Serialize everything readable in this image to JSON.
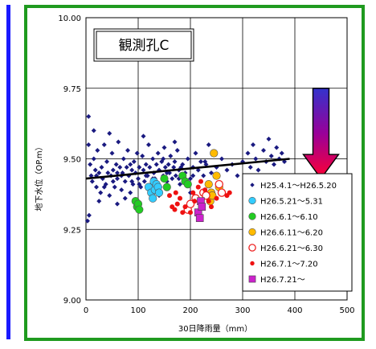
{
  "colors": {
    "frame": "#1f9a1f",
    "left_bar": "#1a1aff"
  },
  "chart_data": {
    "type": "scatter",
    "title": "観測孔C",
    "xlabel": "30日降雨量（mm）",
    "ylabel": "地下水位（OP.m）",
    "xlim": [
      0,
      500
    ],
    "ylim": [
      9.0,
      10.0
    ],
    "x_ticks": [
      "0",
      "100",
      "200",
      "300",
      "400",
      "500"
    ],
    "y_ticks": [
      "9.00",
      "9.25",
      "9.50",
      "9.75",
      "10.00"
    ],
    "grid": true,
    "legend_position": "bottom-right",
    "trendline": {
      "x": [
        0,
        390
      ],
      "y": [
        9.43,
        9.5
      ],
      "color": "#000000"
    },
    "arrow": {
      "x": 450,
      "y_top": 9.75,
      "y_bottom": 9.43,
      "colors": [
        "#3333cc",
        "#990099",
        "#ff0033"
      ]
    },
    "series": [
      {
        "name": "H25.4.1～H26.5.20",
        "marker": "diamond",
        "color": "#1a1a80",
        "points": [
          [
            5,
            9.55
          ],
          [
            8,
            9.48
          ],
          [
            10,
            9.44
          ],
          [
            12,
            9.42
          ],
          [
            15,
            9.5
          ],
          [
            18,
            9.46
          ],
          [
            20,
            9.4
          ],
          [
            22,
            9.53
          ],
          [
            25,
            9.45
          ],
          [
            28,
            9.38
          ],
          [
            30,
            9.47
          ],
          [
            32,
            9.43
          ],
          [
            35,
            9.55
          ],
          [
            38,
            9.41
          ],
          [
            40,
            9.49
          ],
          [
            42,
            9.45
          ],
          [
            45,
            9.37
          ],
          [
            48,
            9.44
          ],
          [
            50,
            9.52
          ],
          [
            52,
            9.46
          ],
          [
            55,
            9.4
          ],
          [
            58,
            9.48
          ],
          [
            60,
            9.43
          ],
          [
            62,
            9.56
          ],
          [
            65,
            9.47
          ],
          [
            68,
            9.39
          ],
          [
            70,
            9.45
          ],
          [
            72,
            9.5
          ],
          [
            75,
            9.42
          ],
          [
            78,
            9.47
          ],
          [
            80,
            9.53
          ],
          [
            82,
            9.44
          ],
          [
            85,
            9.38
          ],
          [
            88,
            9.46
          ],
          [
            90,
            9.41
          ],
          [
            92,
            9.49
          ],
          [
            95,
            9.45
          ],
          [
            98,
            9.52
          ],
          [
            100,
            9.43
          ],
          [
            102,
            9.47
          ],
          [
            105,
            9.4
          ],
          [
            108,
            9.51
          ],
          [
            110,
            9.46
          ],
          [
            112,
            9.42
          ],
          [
            115,
            9.48
          ],
          [
            118,
            9.44
          ],
          [
            120,
            9.55
          ],
          [
            122,
            9.47
          ],
          [
            125,
            9.41
          ],
          [
            128,
            9.5
          ],
          [
            130,
            9.45
          ],
          [
            132,
            9.43
          ],
          [
            135,
            9.48
          ],
          [
            138,
            9.52
          ],
          [
            140,
            9.46
          ],
          [
            142,
            9.4
          ],
          [
            145,
            9.49
          ],
          [
            148,
            9.44
          ],
          [
            150,
            9.54
          ],
          [
            152,
            9.47
          ],
          [
            155,
            9.42
          ],
          [
            158,
            9.48
          ],
          [
            160,
            9.45
          ],
          [
            162,
            9.51
          ],
          [
            165,
            9.43
          ],
          [
            168,
            9.47
          ],
          [
            170,
            9.49
          ],
          [
            172,
            9.44
          ],
          [
            175,
            9.53
          ],
          [
            178,
            9.46
          ],
          [
            180,
            9.41
          ],
          [
            185,
            9.48
          ],
          [
            190,
            9.45
          ],
          [
            195,
            9.5
          ],
          [
            200,
            9.43
          ],
          [
            205,
            9.47
          ],
          [
            210,
            9.52
          ],
          [
            215,
            9.46
          ],
          [
            220,
            9.49
          ],
          [
            225,
            9.44
          ],
          [
            230,
            9.48
          ],
          [
            240,
            9.45
          ],
          [
            250,
            9.47
          ],
          [
            260,
            9.5
          ],
          [
            270,
            9.46
          ],
          [
            280,
            9.48
          ],
          [
            290,
            9.44
          ],
          [
            300,
            9.49
          ],
          [
            310,
            9.52
          ],
          [
            315,
            9.47
          ],
          [
            320,
            9.55
          ],
          [
            325,
            9.5
          ],
          [
            330,
            9.46
          ],
          [
            340,
            9.53
          ],
          [
            345,
            9.49
          ],
          [
            350,
            9.57
          ],
          [
            355,
            9.51
          ],
          [
            360,
            9.48
          ],
          [
            365,
            9.54
          ],
          [
            370,
            9.5
          ],
          [
            375,
            9.52
          ],
          [
            380,
            9.49
          ],
          [
            3,
            9.28
          ],
          [
            5,
            9.65
          ],
          [
            6,
            9.3
          ],
          [
            15,
            9.6
          ],
          [
            25,
            9.35
          ],
          [
            45,
            9.59
          ],
          [
            60,
            9.34
          ],
          [
            75,
            9.36
          ],
          [
            110,
            9.58
          ],
          [
            140,
            9.37
          ],
          [
            170,
            9.56
          ],
          [
            200,
            9.38
          ],
          [
            235,
            9.55
          ],
          [
            60,
            9.45
          ],
          [
            85,
            9.48
          ],
          [
            115,
            9.44
          ],
          [
            148,
            9.5
          ],
          [
            178,
            9.43
          ],
          [
            20,
            9.44
          ],
          [
            35,
            9.4
          ],
          [
            52,
            9.42
          ],
          [
            68,
            9.44
          ],
          [
            88,
            9.42
          ],
          [
            102,
            9.41
          ],
          [
            128,
            9.43
          ],
          [
            155,
            9.45
          ],
          [
            182,
            9.47
          ],
          [
            205,
            9.44
          ],
          [
            228,
            9.49
          ]
        ]
      },
      {
        "name": "H26.5.21～5.31",
        "marker": "circle",
        "color": "#33ccff",
        "points": [
          [
            120,
            9.4
          ],
          [
            125,
            9.38
          ],
          [
            130,
            9.42
          ],
          [
            132,
            9.39
          ],
          [
            135,
            9.41
          ],
          [
            128,
            9.36
          ],
          [
            138,
            9.4
          ],
          [
            140,
            9.38
          ]
        ]
      },
      {
        "name": "H26.6.1～6.10",
        "marker": "circle",
        "color": "#22cc22",
        "points": [
          [
            95,
            9.35
          ],
          [
            98,
            9.33
          ],
          [
            100,
            9.34
          ],
          [
            102,
            9.32
          ],
          [
            150,
            9.43
          ],
          [
            155,
            9.4
          ],
          [
            185,
            9.44
          ],
          [
            190,
            9.42
          ],
          [
            195,
            9.41
          ]
        ]
      },
      {
        "name": "H26.6.11～6.20",
        "marker": "circle",
        "color": "#ffbb00",
        "points": [
          [
            235,
            9.41
          ],
          [
            240,
            9.38
          ],
          [
            245,
            9.52
          ],
          [
            250,
            9.44
          ],
          [
            255,
            9.4
          ],
          [
            238,
            9.35
          ],
          [
            242,
            9.37
          ]
        ]
      },
      {
        "name": "H26.6.21～6.30",
        "marker": "open-circle",
        "color": "#ee2222",
        "points": [
          [
            195,
            9.32
          ],
          [
            200,
            9.34
          ],
          [
            210,
            9.36
          ],
          [
            225,
            9.38
          ],
          [
            255,
            9.41
          ],
          [
            260,
            9.38
          ],
          [
            230,
            9.37
          ]
        ]
      },
      {
        "name": "H26.7.1～7.20",
        "marker": "dot",
        "color": "#ee1111",
        "points": [
          [
            160,
            9.37
          ],
          [
            165,
            9.33
          ],
          [
            170,
            9.32
          ],
          [
            175,
            9.34
          ],
          [
            180,
            9.36
          ],
          [
            185,
            9.31
          ],
          [
            190,
            9.33
          ],
          [
            200,
            9.31
          ],
          [
            205,
            9.38
          ],
          [
            215,
            9.4
          ],
          [
            220,
            9.42
          ],
          [
            228,
            9.39
          ],
          [
            235,
            9.35
          ],
          [
            240,
            9.33
          ],
          [
            250,
            9.36
          ],
          [
            270,
            9.37
          ],
          [
            275,
            9.38
          ],
          [
            172,
            9.38
          ],
          [
            208,
            9.35
          ]
        ]
      },
      {
        "name": "H26.7.21～",
        "marker": "square",
        "color": "#cc22cc",
        "points": [
          [
            215,
            9.31
          ],
          [
            218,
            9.29
          ],
          [
            220,
            9.35
          ],
          [
            222,
            9.33
          ]
        ]
      }
    ]
  }
}
